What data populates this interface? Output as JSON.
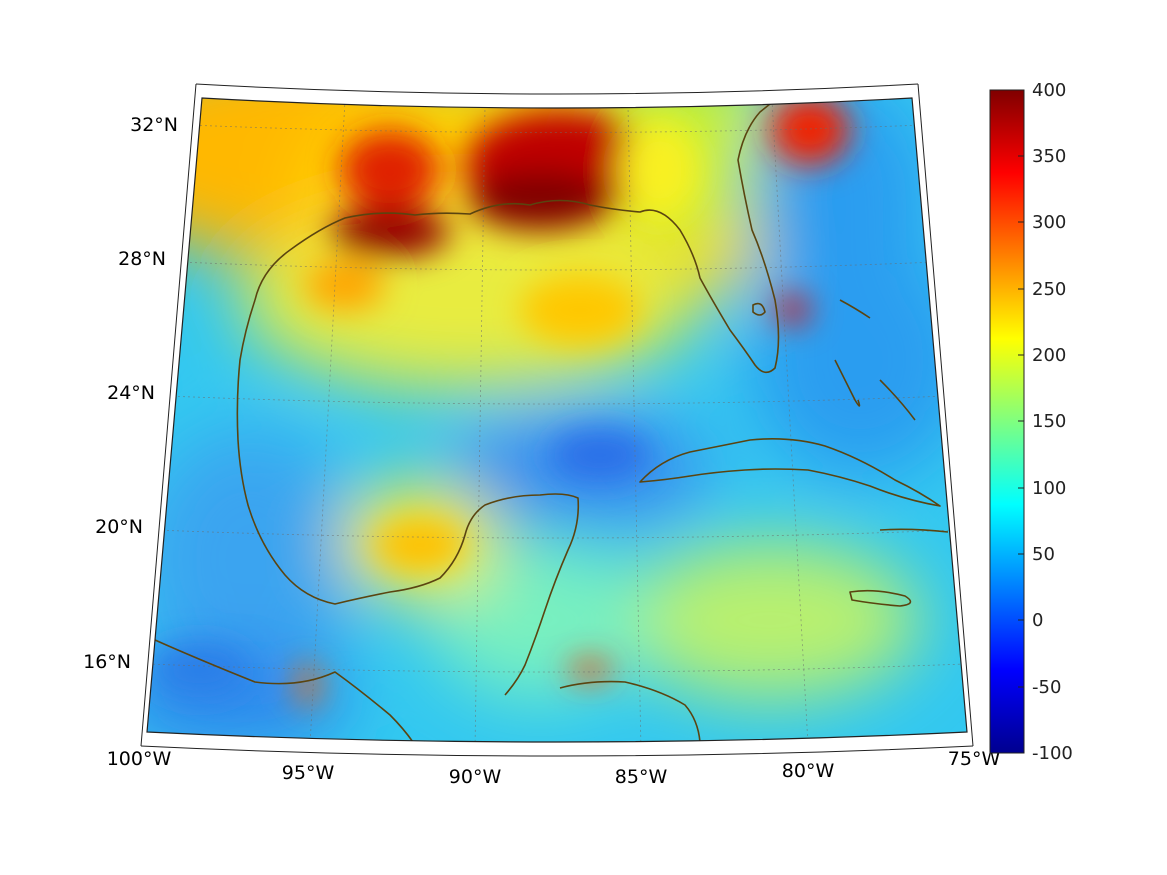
{
  "map": {
    "lat_labels": [
      "32°N",
      "28°N",
      "24°N",
      "20°N",
      "16°N"
    ],
    "lon_labels": [
      "100°W",
      "95°W",
      "90°W",
      "85°W",
      "80°W",
      "75°W"
    ]
  },
  "colorbar": {
    "colormap": "jet",
    "min": -100,
    "max": 400,
    "tick_labels": [
      "400",
      "350",
      "300",
      "250",
      "200",
      "150",
      "100",
      "50",
      "0",
      "-50",
      "-100"
    ]
  },
  "colors": {
    "coastline": "#5a4410",
    "low": "#00008f",
    "high": "#800000"
  }
}
